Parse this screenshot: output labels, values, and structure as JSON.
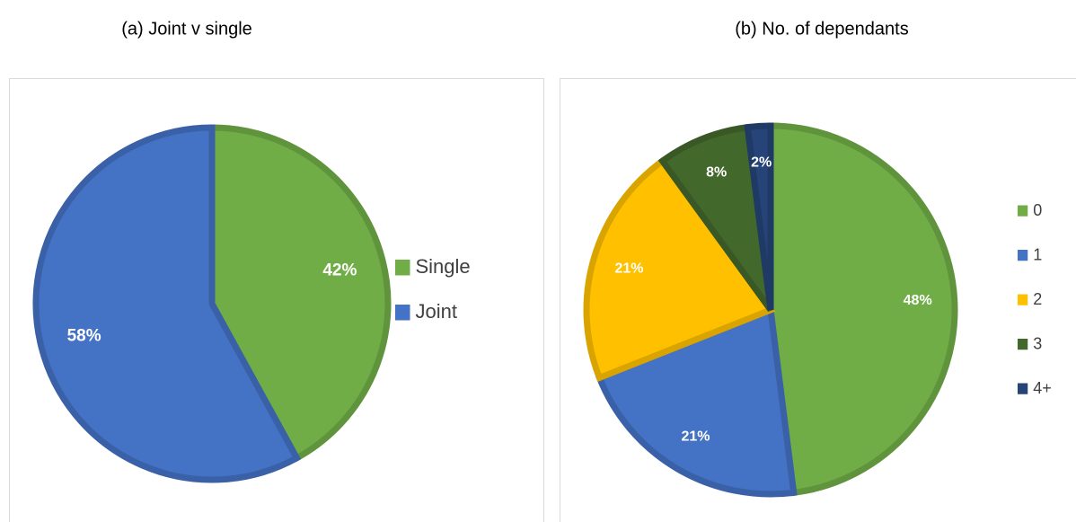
{
  "chart_data": [
    {
      "type": "pie",
      "title": "(a)  Joint v single",
      "categories": [
        "Single",
        "Joint"
      ],
      "values": [
        42,
        58
      ],
      "value_labels": [
        "42%",
        "58%"
      ],
      "colors": [
        "#70ad47",
        "#4472c4"
      ]
    },
    {
      "type": "pie",
      "title": "(b) No. of dependants",
      "categories": [
        "0",
        "1",
        "2",
        "3",
        "4+"
      ],
      "values": [
        48,
        21,
        21,
        8,
        2
      ],
      "value_labels": [
        "48%",
        "21%",
        "21%",
        "8%",
        "2%"
      ],
      "colors": [
        "#70ad47",
        "#4472c4",
        "#ffc000",
        "#43682b",
        "#264478"
      ]
    }
  ]
}
